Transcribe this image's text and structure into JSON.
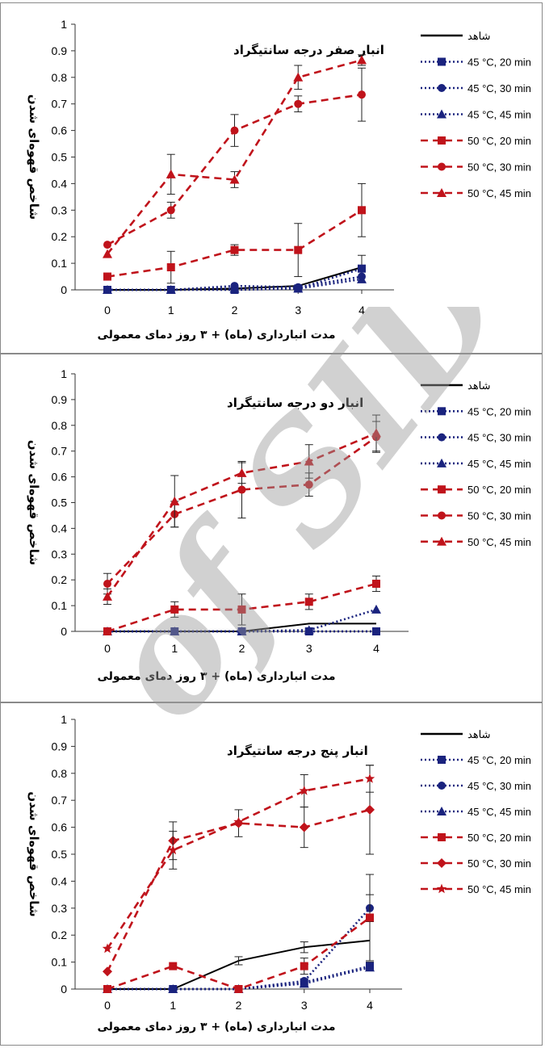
{
  "watermark": "of SID",
  "legend_labels": [
    "شاهد",
    "45 °C, 20 min",
    "45 °C, 30 min",
    "45 °C, 45 min",
    "50 °C, 20 min",
    "50 °C, 30 min",
    "50 °C, 45 min"
  ],
  "colors": {
    "control": "#000000",
    "t45": "#1a237e",
    "t50": "#c0131b",
    "axis": "#333333"
  },
  "chart_data": [
    {
      "type": "line",
      "title": "انبار صفر درجه سانتیگراد",
      "xlabel": "مدت انبارداری (ماه) + ۳ روز دمای معمولی",
      "ylabel": "شاخص قهوه‌ای شدن",
      "x": [
        0,
        1,
        2,
        3,
        4
      ],
      "xticks": [
        "0",
        "1",
        "2",
        "3",
        "4"
      ],
      "ylim": [
        0,
        1
      ],
      "yticks": [
        "0",
        "0.1",
        "0.2",
        "0.3",
        "0.4",
        "0.5",
        "0.6",
        "0.7",
        "0.8",
        "0.9",
        "1"
      ],
      "legend": "right",
      "series": [
        {
          "name": "شاهد",
          "values": [
            0,
            0,
            0.005,
            0.015,
            0.085
          ],
          "err": [
            0,
            0,
            0,
            0,
            0
          ],
          "marker": "none",
          "color": "#000000",
          "dash": "solid"
        },
        {
          "name": "45 °C, 20 min",
          "values": [
            0,
            0,
            0,
            0.005,
            0.08
          ],
          "err": [
            0,
            0,
            0,
            0,
            0.05
          ],
          "marker": "square",
          "color": "#1a237e",
          "dash": "dot"
        },
        {
          "name": "45 °C, 30 min",
          "values": [
            0,
            0,
            0.015,
            0.01,
            0.05
          ],
          "err": [
            0,
            0,
            0,
            0,
            0
          ],
          "marker": "circle",
          "color": "#1a237e",
          "dash": "dot"
        },
        {
          "name": "45 °C, 45 min",
          "values": [
            0,
            0,
            0.005,
            0.005,
            0.04
          ],
          "err": [
            0,
            0,
            0,
            0,
            0
          ],
          "marker": "triangle",
          "color": "#1a237e",
          "dash": "dot"
        },
        {
          "name": "50 °C, 20 min",
          "values": [
            0.05,
            0.085,
            0.15,
            0.15,
            0.3
          ],
          "err": [
            0,
            0.06,
            0.02,
            0.1,
            0.1
          ],
          "marker": "square",
          "color": "#c0131b",
          "dash": "dash"
        },
        {
          "name": "50 °C, 30 min",
          "values": [
            0.17,
            0.3,
            0.6,
            0.7,
            0.735
          ],
          "err": [
            0,
            0.03,
            0.06,
            0.03,
            0.1
          ],
          "marker": "circle",
          "color": "#c0131b",
          "dash": "dash"
        },
        {
          "name": "50 °C, 45 min",
          "values": [
            0.135,
            0.435,
            0.415,
            0.8,
            0.865
          ],
          "err": [
            0,
            0.075,
            0.03,
            0.045,
            0.02
          ],
          "marker": "triangle",
          "color": "#c0131b",
          "dash": "dash"
        }
      ]
    },
    {
      "type": "line",
      "title": "انبار دو درجه سانتیگراد",
      "xlabel": "مدت انبارداری (ماه) + ۳ روز دمای معمولی",
      "ylabel": "شاخص قهوه‌ای شدن",
      "x": [
        0,
        1,
        2,
        3,
        4
      ],
      "xticks": [
        "0",
        "1",
        "2",
        "3",
        "4"
      ],
      "ylim": [
        0,
        1
      ],
      "yticks": [
        "0",
        "0.1",
        "0.2",
        "0.3",
        "0.4",
        "0.5",
        "0.6",
        "0.7",
        "0.8",
        "0.9",
        "1"
      ],
      "legend": "right",
      "series": [
        {
          "name": "شاهد",
          "values": [
            0,
            0,
            0,
            0.03,
            0.03
          ],
          "err": [
            0,
            0,
            0,
            0,
            0
          ],
          "marker": "none",
          "color": "#000000",
          "dash": "solid"
        },
        {
          "name": "45 °C, 20 min",
          "values": [
            0,
            0,
            0,
            0,
            0
          ],
          "err": [
            0,
            0,
            0,
            0,
            0
          ],
          "marker": "square",
          "color": "#1a237e",
          "dash": "dot"
        },
        {
          "name": "45 °C, 30 min",
          "values": [
            0,
            0,
            0,
            0,
            0
          ],
          "err": [
            0,
            0,
            0,
            0,
            0
          ],
          "marker": "circle",
          "color": "#1a237e",
          "dash": "dot"
        },
        {
          "name": "45 °C, 45 min",
          "values": [
            0,
            0,
            0,
            0.005,
            0.085
          ],
          "err": [
            0,
            0,
            0,
            0,
            0
          ],
          "marker": "triangle",
          "color": "#1a237e",
          "dash": "dot"
        },
        {
          "name": "50 °C, 20 min",
          "values": [
            0,
            0.085,
            0.085,
            0.115,
            0.185
          ],
          "err": [
            0,
            0.03,
            0.06,
            0.03,
            0.03
          ],
          "marker": "square",
          "color": "#c0131b",
          "dash": "dash"
        },
        {
          "name": "50 °C, 30 min",
          "values": [
            0.185,
            0.455,
            0.55,
            0.57,
            0.755
          ],
          "err": [
            0.04,
            0.05,
            0.11,
            0.045,
            0.06
          ],
          "marker": "circle",
          "color": "#c0131b",
          "dash": "dash"
        },
        {
          "name": "50 °C, 45 min",
          "values": [
            0.135,
            0.505,
            0.615,
            0.66,
            0.77
          ],
          "err": [
            0.03,
            0.1,
            0.04,
            0.065,
            0.07
          ],
          "marker": "triangle",
          "color": "#c0131b",
          "dash": "dash"
        }
      ]
    },
    {
      "type": "line",
      "title": "انبار پنج درجه سانتیگراد",
      "xlabel": "مدت انبارداری (ماه) + ۳ روز دمای معمولی",
      "ylabel": "شاخص قهوه‌ای شدن",
      "x": [
        0,
        1,
        2,
        3,
        4
      ],
      "xticks": [
        "0",
        "1",
        "2",
        "3",
        "4"
      ],
      "ylim": [
        0,
        1
      ],
      "yticks": [
        "0",
        "0.1",
        "0.2",
        "0.3",
        "0.4",
        "0.5",
        "0.6",
        "0.7",
        "0.8",
        "0.9",
        "1"
      ],
      "legend": "right",
      "series": [
        {
          "name": "شاهد",
          "values": [
            0,
            0,
            0.105,
            0.155,
            0.18
          ],
          "err": [
            0,
            0,
            0.015,
            0.02,
            0
          ],
          "marker": "none",
          "color": "#000000",
          "dash": "solid"
        },
        {
          "name": "45 °C, 20 min",
          "values": [
            0,
            0,
            0,
            0.025,
            0.085
          ],
          "err": [
            0,
            0,
            0,
            0,
            0.015
          ],
          "marker": "square",
          "color": "#1a237e",
          "dash": "dot"
        },
        {
          "name": "45 °C, 30 min",
          "values": [
            0,
            0,
            0,
            0.03,
            0.3
          ],
          "err": [
            0,
            0,
            0,
            0,
            0.05
          ],
          "marker": "circle",
          "color": "#1a237e",
          "dash": "dot"
        },
        {
          "name": "45 °C, 45 min",
          "values": [
            0,
            0,
            0,
            0.02,
            0.08
          ],
          "err": [
            0,
            0,
            0,
            0,
            0
          ],
          "marker": "triangle",
          "color": "#1a237e",
          "dash": "dot"
        },
        {
          "name": "50 °C, 20 min",
          "values": [
            0,
            0.085,
            0,
            0.085,
            0.265
          ],
          "err": [
            0,
            0,
            0,
            0.03,
            0.16
          ],
          "marker": "square",
          "color": "#c0131b",
          "dash": "dash"
        },
        {
          "name": "50 °C, 30 min",
          "values": [
            0.065,
            0.55,
            0.615,
            0.6,
            0.665
          ],
          "err": [
            0,
            0.07,
            0.05,
            0.075,
            0.165
          ],
          "marker": "diamond",
          "color": "#c0131b",
          "dash": "dash"
        },
        {
          "name": "50 °C, 45 min",
          "values": [
            0.15,
            0.515,
            0.62,
            0.735,
            0.78
          ],
          "err": [
            0,
            0.07,
            0,
            0.06,
            0.05
          ],
          "marker": "star",
          "color": "#c0131b",
          "dash": "dash"
        }
      ]
    }
  ]
}
